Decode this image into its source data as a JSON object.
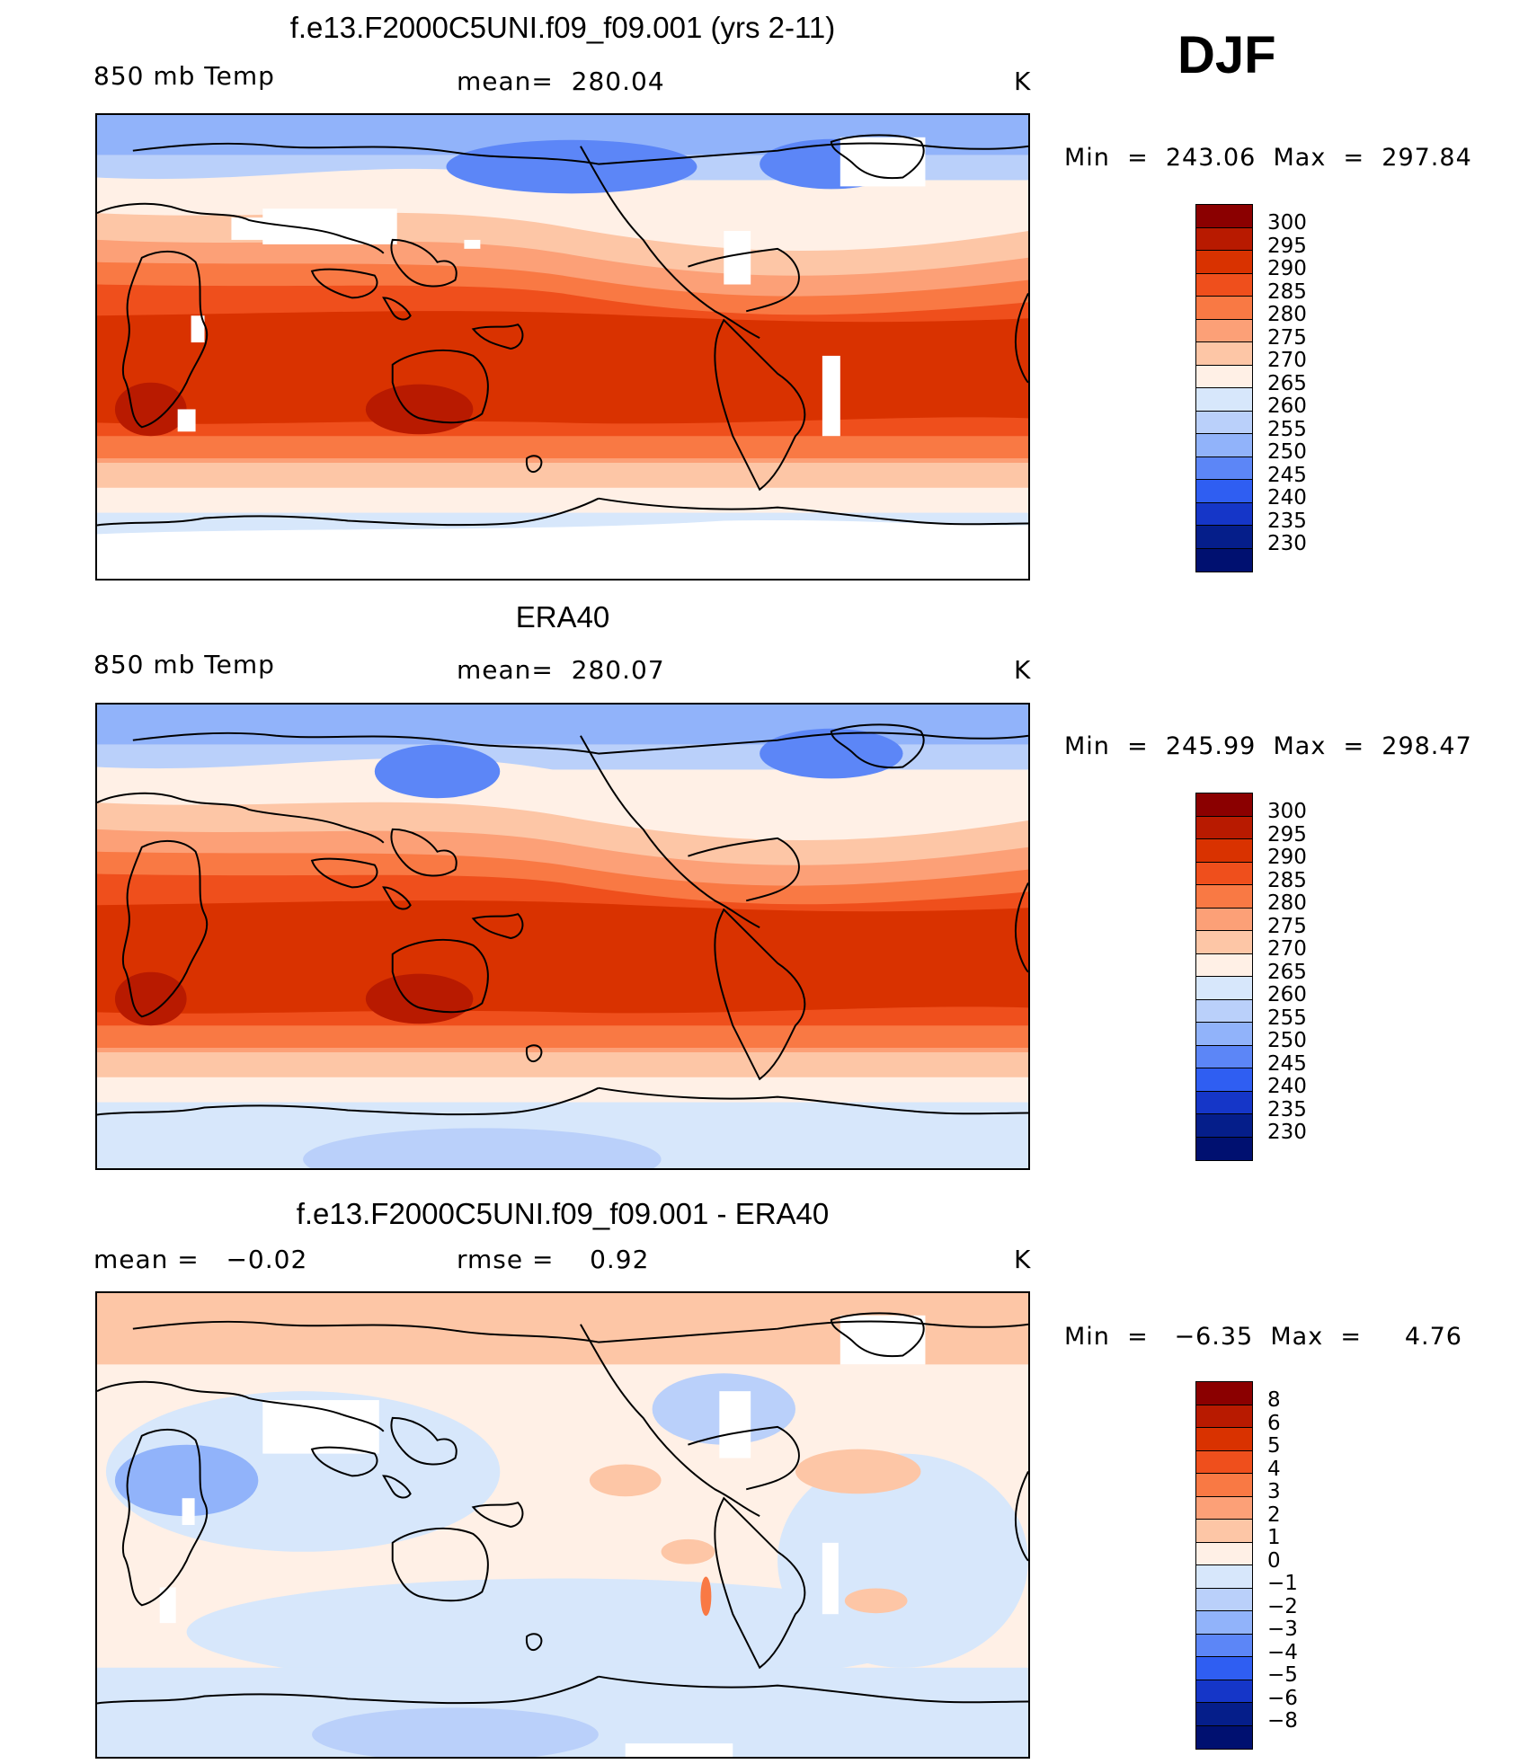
{
  "season": "DJF",
  "panels": [
    {
      "title": "f.e13.F2000C5UNI.f09_f09.001 (yrs 2-11)",
      "left_label": "850 mb Temp",
      "mid_label": "mean=  280.04",
      "units": "K",
      "minmax": "Min  =  243.06  Max  =  297.84",
      "colorbar": {
        "labels": [
          "300",
          "295",
          "290",
          "285",
          "280",
          "275",
          "270",
          "265",
          "260",
          "255",
          "250",
          "245",
          "240",
          "235",
          "230"
        ],
        "colors": [
          "#8b0000",
          "#b81a00",
          "#d93200",
          "#ef4f1c",
          "#f97944",
          "#fca077",
          "#fdc6a6",
          "#fff0e6",
          "#d7e7fb",
          "#bad0fa",
          "#91b3fa",
          "#5c86f7",
          "#2f5ef2",
          "#1536c8",
          "#051e8a",
          "#001070"
        ]
      },
      "map_tag": "model"
    },
    {
      "title": "ERA40",
      "left_label": "850 mb Temp",
      "mid_label": "mean=  280.07",
      "units": "K",
      "minmax": "Min  =  245.99  Max  =  298.47",
      "colorbar": {
        "labels": [
          "300",
          "295",
          "290",
          "285",
          "280",
          "275",
          "270",
          "265",
          "260",
          "255",
          "250",
          "245",
          "240",
          "235",
          "230"
        ],
        "colors": [
          "#8b0000",
          "#b81a00",
          "#d93200",
          "#ef4f1c",
          "#f97944",
          "#fca077",
          "#fdc6a6",
          "#fff0e6",
          "#d7e7fb",
          "#bad0fa",
          "#91b3fa",
          "#5c86f7",
          "#2f5ef2",
          "#1536c8",
          "#051e8a",
          "#001070"
        ]
      },
      "map_tag": "obs"
    },
    {
      "title": "f.e13.F2000C5UNI.f09_f09.001 - ERA40",
      "left_label": "mean =   −0.02",
      "mid_label": "rmse =    0.92",
      "units": "K",
      "minmax": "Min  =   −6.35  Max  =     4.76",
      "colorbar": {
        "labels": [
          "8",
          "6",
          "5",
          "4",
          "3",
          "2",
          "1",
          "0",
          "−1",
          "−2",
          "−3",
          "−4",
          "−5",
          "−6",
          "−8"
        ],
        "colors": [
          "#8b0000",
          "#b81a00",
          "#d93200",
          "#ef4f1c",
          "#f97944",
          "#fca077",
          "#fdc6a6",
          "#fff0e6",
          "#d7e7fb",
          "#bad0fa",
          "#91b3fa",
          "#5c86f7",
          "#2f5ef2",
          "#1536c8",
          "#051e8a",
          "#001070"
        ]
      },
      "map_tag": "diff"
    }
  ]
}
